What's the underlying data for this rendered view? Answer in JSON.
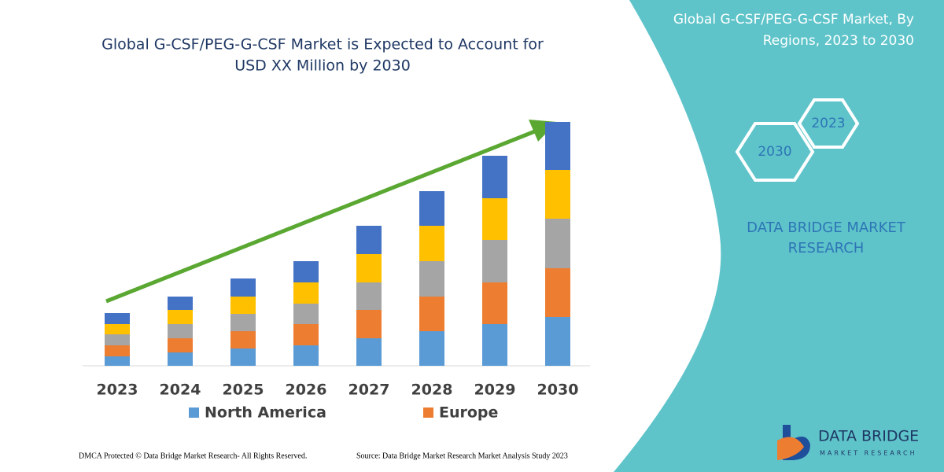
{
  "chart_data": {
    "type": "stacked-bar",
    "title": [
      "Global G-CSF/PEG-G-CSF Market is Expected to Account for",
      "USD XX Million by 2030"
    ],
    "categories": [
      "2023",
      "2024",
      "2025",
      "2026",
      "2027",
      "2028",
      "2029",
      "2030"
    ],
    "series": [
      {
        "name": "North America",
        "color": "#5b9bd5",
        "values": [
          12,
          17,
          22,
          26,
          35,
          44,
          53,
          62
        ]
      },
      {
        "name": "Europe",
        "color": "#ed7d31",
        "values": [
          14,
          18,
          22,
          27,
          36,
          44,
          53,
          62
        ]
      },
      {
        "color": "#a5a5a5",
        "values": [
          14,
          18,
          22,
          26,
          35,
          45,
          54,
          63
        ]
      },
      {
        "color": "#ffc000",
        "values": [
          13,
          18,
          22,
          27,
          36,
          45,
          53,
          62
        ]
      },
      {
        "color": "#4472c4",
        "values": [
          14,
          17,
          23,
          27,
          36,
          44,
          54,
          61
        ]
      }
    ]
  },
  "panel": {
    "title": [
      "Global G-CSF/PEG-G-CSF Market, By",
      "Regions, 2023 to 2030"
    ],
    "hexagons": [
      "2023",
      "2030"
    ],
    "brand": [
      "DATA BRIDGE MARKET",
      "RESEARCH"
    ]
  },
  "footer": {
    "left": "DMCA Protected © Data Bridge Market Research-  All Rights Reserved.",
    "right": "Source: Data Bridge Market Research  Market Analysis Study 2023"
  },
  "logo": {
    "name": "DATA BRIDGE",
    "tagline": "MARKET RESEARCH"
  }
}
